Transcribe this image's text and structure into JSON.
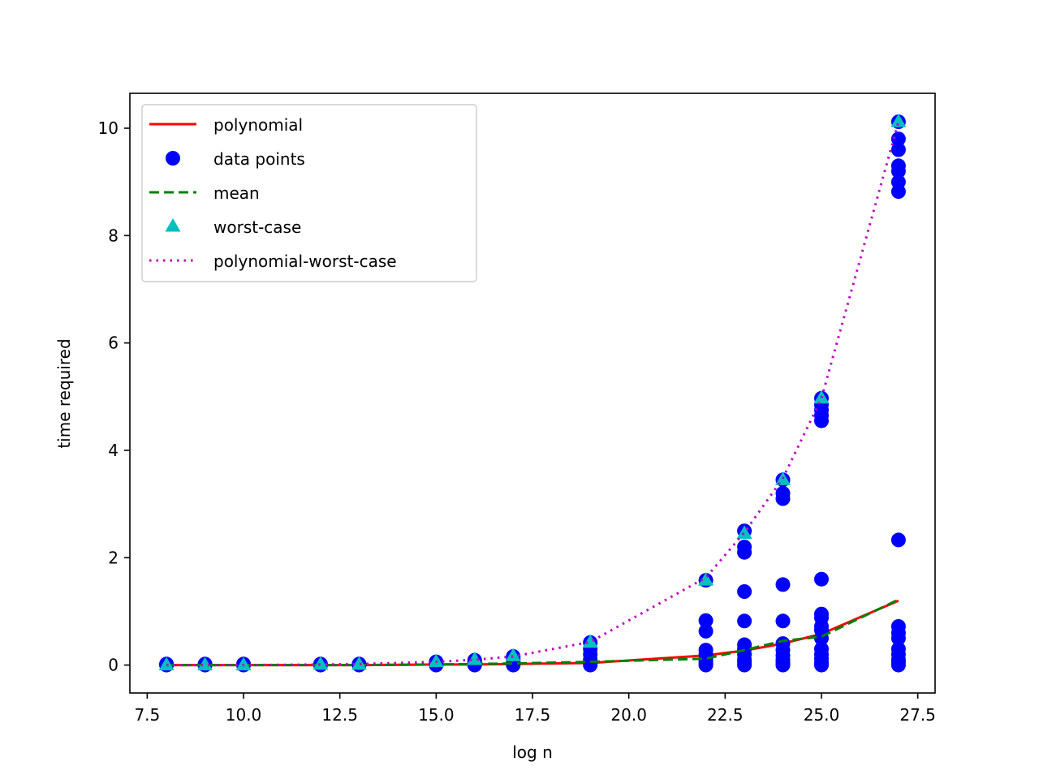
{
  "chart_data": {
    "type": "line",
    "title": "",
    "xlabel": "log n",
    "ylabel": "time required",
    "xlim": [
      7.05,
      27.95
    ],
    "ylim": [
      -0.52,
      10.65
    ],
    "xticks": [
      7.5,
      10.0,
      12.5,
      15.0,
      17.5,
      20.0,
      22.5,
      25.0,
      27.5
    ],
    "xtick_labels": [
      "7.5",
      "10.0",
      "12.5",
      "15.0",
      "17.5",
      "20.0",
      "22.5",
      "25.0",
      "27.5"
    ],
    "yticks": [
      0,
      2,
      4,
      6,
      8,
      10
    ],
    "ytick_labels": [
      "0",
      "2",
      "4",
      "6",
      "8",
      "10"
    ],
    "grid": false,
    "legend_position": "upper-left",
    "x": [
      8,
      9,
      10,
      12,
      13,
      15,
      16,
      17,
      19,
      22,
      23,
      24,
      25,
      27
    ],
    "series": [
      {
        "name": "polynomial",
        "kind": "line",
        "style": "solid",
        "color": "#ff0000",
        "values": [
          0.0,
          0.0,
          0.0,
          0.0,
          0.0,
          0.01,
          0.01,
          0.02,
          0.04,
          0.18,
          0.27,
          0.4,
          0.58,
          1.2
        ]
      },
      {
        "name": "data points",
        "kind": "scatter",
        "marker": "circle",
        "color": "#0000ff",
        "points": [
          [
            8,
            0.0
          ],
          [
            8,
            0.01
          ],
          [
            8,
            0.02
          ],
          [
            9,
            0.0
          ],
          [
            9,
            0.01
          ],
          [
            9,
            0.02
          ],
          [
            10,
            0.0
          ],
          [
            10,
            0.01
          ],
          [
            10,
            0.02
          ],
          [
            12,
            0.0
          ],
          [
            12,
            0.01
          ],
          [
            12,
            0.02
          ],
          [
            13,
            0.0
          ],
          [
            13,
            0.01
          ],
          [
            13,
            0.02
          ],
          [
            15,
            0.0
          ],
          [
            15,
            0.02
          ],
          [
            15,
            0.04
          ],
          [
            15,
            0.06
          ],
          [
            16,
            0.0
          ],
          [
            16,
            0.02
          ],
          [
            16,
            0.05
          ],
          [
            16,
            0.09
          ],
          [
            17,
            0.0
          ],
          [
            17,
            0.03
          ],
          [
            17,
            0.06
          ],
          [
            17,
            0.11
          ],
          [
            17,
            0.16
          ],
          [
            19,
            0.0
          ],
          [
            19,
            0.05
          ],
          [
            19,
            0.1
          ],
          [
            19,
            0.2
          ],
          [
            19,
            0.3
          ],
          [
            19,
            0.42
          ],
          [
            22,
            0.0
          ],
          [
            22,
            0.03
          ],
          [
            22,
            0.08
          ],
          [
            22,
            0.12
          ],
          [
            22,
            0.2
          ],
          [
            22,
            0.28
          ],
          [
            22,
            0.63
          ],
          [
            22,
            0.83
          ],
          [
            22,
            1.58
          ],
          [
            23,
            0.0
          ],
          [
            23,
            0.05
          ],
          [
            23,
            0.1
          ],
          [
            23,
            0.2
          ],
          [
            23,
            0.3
          ],
          [
            23,
            0.38
          ],
          [
            23,
            0.82
          ],
          [
            23,
            1.37
          ],
          [
            23,
            2.1
          ],
          [
            23,
            2.2
          ],
          [
            23,
            2.5
          ],
          [
            24,
            0.0
          ],
          [
            24,
            0.05
          ],
          [
            24,
            0.1
          ],
          [
            24,
            0.18
          ],
          [
            24,
            0.28
          ],
          [
            24,
            0.4
          ],
          [
            24,
            0.82
          ],
          [
            24,
            1.5
          ],
          [
            24,
            3.1
          ],
          [
            24,
            3.2
          ],
          [
            24,
            3.45
          ],
          [
            25,
            0.0
          ],
          [
            25,
            0.05
          ],
          [
            25,
            0.12
          ],
          [
            25,
            0.2
          ],
          [
            25,
            0.3
          ],
          [
            25,
            0.5
          ],
          [
            25,
            0.65
          ],
          [
            25,
            0.72
          ],
          [
            25,
            0.88
          ],
          [
            25,
            0.95
          ],
          [
            25,
            1.6
          ],
          [
            25,
            4.55
          ],
          [
            25,
            4.65
          ],
          [
            25,
            4.75
          ],
          [
            25,
            4.85
          ],
          [
            25,
            4.97
          ],
          [
            27,
            0.0
          ],
          [
            27,
            0.05
          ],
          [
            27,
            0.1
          ],
          [
            27,
            0.2
          ],
          [
            27,
            0.3
          ],
          [
            27,
            0.5
          ],
          [
            27,
            0.6
          ],
          [
            27,
            0.72
          ],
          [
            27,
            2.33
          ],
          [
            27,
            8.82
          ],
          [
            27,
            9.0
          ],
          [
            27,
            9.2
          ],
          [
            27,
            9.3
          ],
          [
            27,
            9.6
          ],
          [
            27,
            9.8
          ],
          [
            27,
            10.12
          ]
        ]
      },
      {
        "name": "mean",
        "kind": "line",
        "style": "dashed",
        "color": "#008000",
        "values": [
          0.0,
          0.0,
          0.0,
          0.0,
          0.0,
          0.01,
          0.02,
          0.03,
          0.06,
          0.12,
          0.28,
          0.45,
          0.53,
          1.22
        ]
      },
      {
        "name": "worst-case",
        "kind": "scatter",
        "marker": "triangle",
        "color": "#00bfbf",
        "values": [
          0.0,
          0.0,
          0.0,
          0.01,
          0.01,
          0.06,
          0.1,
          0.17,
          0.42,
          1.58,
          2.45,
          3.45,
          4.97,
          10.12
        ]
      },
      {
        "name": "polynomial-worst-case",
        "kind": "line",
        "style": "dotted",
        "color": "#bf00bf",
        "values": [
          0.0,
          0.0,
          0.0,
          0.01,
          0.02,
          0.06,
          0.1,
          0.16,
          0.43,
          1.63,
          2.47,
          3.48,
          4.97,
          10.12
        ]
      }
    ]
  }
}
